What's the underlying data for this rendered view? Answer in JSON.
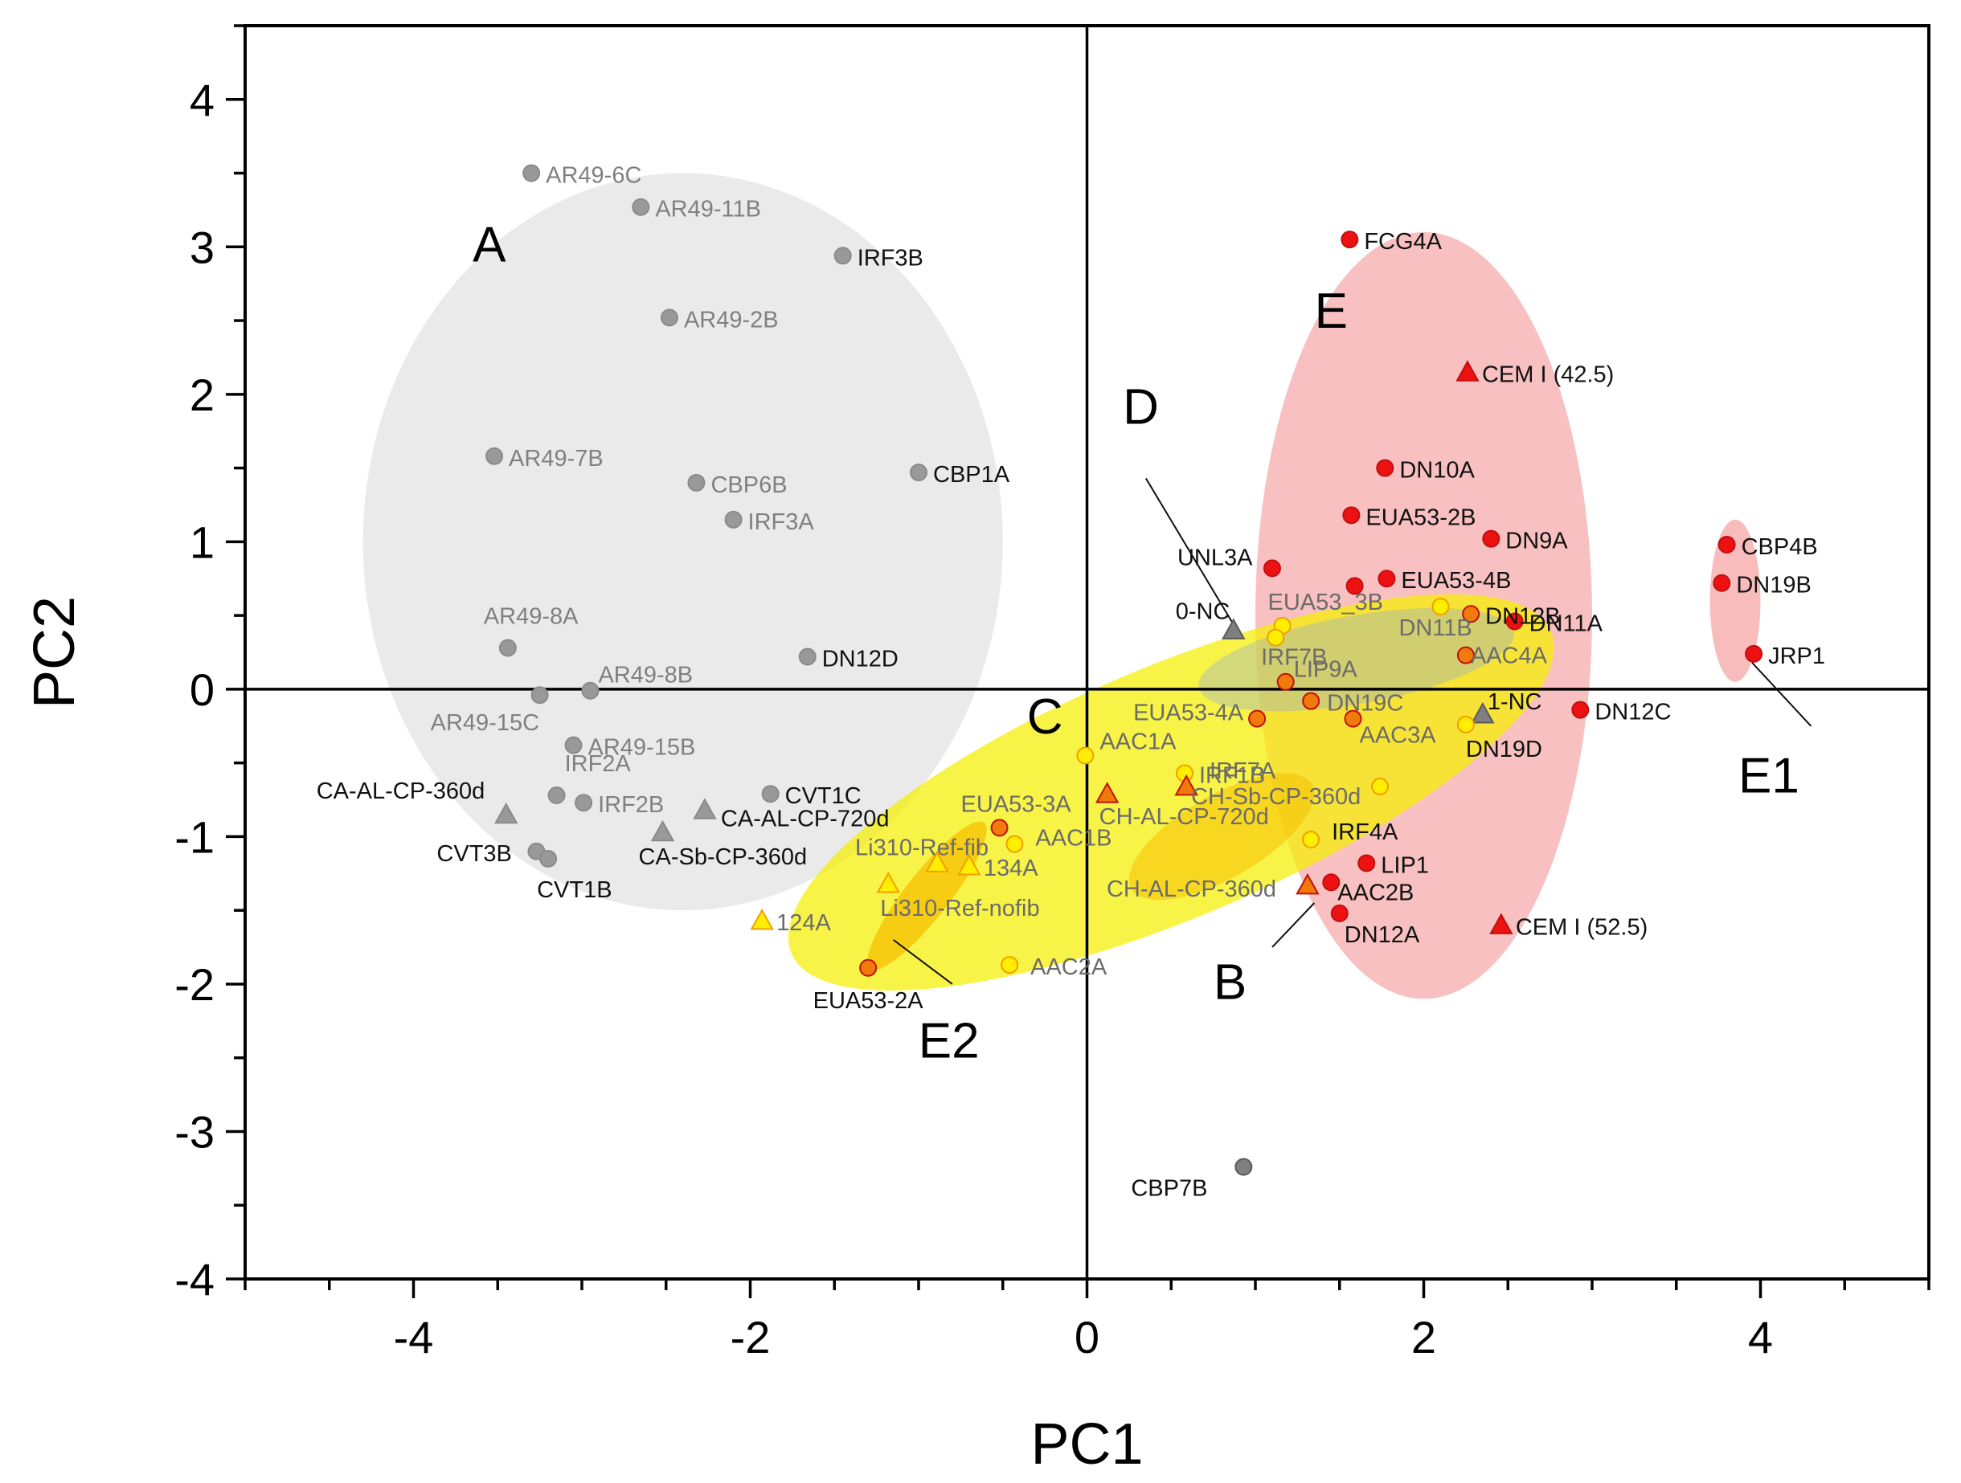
{
  "chart_data": {
    "type": "scatter",
    "title": "",
    "xlabel": "PC1",
    "ylabel": "PC2",
    "xlim": [
      -5,
      5
    ],
    "ylim": [
      -4,
      4.5
    ],
    "xticks": [
      -4,
      -2,
      0,
      2,
      4
    ],
    "yticks": [
      -4,
      -3,
      -2,
      -1,
      0,
      1,
      2,
      3,
      4
    ],
    "xtick_labels": [
      "-4",
      "-2",
      "0",
      "2",
      "4"
    ],
    "ytick_labels": [
      "-4",
      "-3",
      "-2",
      "-1",
      "0",
      "1",
      "2",
      "3",
      "4"
    ],
    "grid": false,
    "colors": {
      "gray": "#999999",
      "darkgray": "#7f7f7f",
      "red": "#ee1111",
      "orange": "#f07a0a",
      "yellow": "#ffee00",
      "ellipse_gray": "#e6e6e6",
      "ellipse_red": "#f7b5b5",
      "ellipse_yellow": "#f5f000",
      "ellipse_orange": "#f5c000",
      "ellipse_blue": "#9cb0c8"
    },
    "groups": [
      {
        "name": "A",
        "cx": -2.4,
        "cy": 1.0,
        "rx": 1.9,
        "ry": 2.5,
        "angle": 0,
        "color": "ellipse_gray",
        "opacity": 0.85
      },
      {
        "name": "E",
        "cx": 2.0,
        "cy": 0.5,
        "rx": 1.0,
        "ry": 2.6,
        "angle": 0,
        "color": "ellipse_red",
        "opacity": 0.85
      },
      {
        "name": "E1",
        "cx": 3.85,
        "cy": 0.6,
        "rx": 0.15,
        "ry": 0.55,
        "angle": 0,
        "color": "ellipse_red",
        "opacity": 0.9
      },
      {
        "name": "C",
        "cx": 0.5,
        "cy": -0.7,
        "rx": 2.45,
        "ry": 0.85,
        "angle": 23,
        "color": "ellipse_yellow",
        "opacity": 0.72
      },
      {
        "name": "B",
        "cx": 0.8,
        "cy": -1.0,
        "rx": 0.62,
        "ry": 0.28,
        "angle": 30,
        "color": "ellipse_orange",
        "opacity": 0.55
      },
      {
        "name": "E2",
        "cx": -0.95,
        "cy": -1.4,
        "rx": 0.55,
        "ry": 0.15,
        "angle": 52,
        "color": "ellipse_orange",
        "opacity": 0.75
      },
      {
        "name": "D",
        "cx": 1.6,
        "cy": 0.2,
        "rx": 0.95,
        "ry": 0.3,
        "angle": 10,
        "color": "ellipse_blue",
        "opacity": 0.4
      }
    ],
    "group_labels": [
      {
        "text": "A",
        "x": -3.55,
        "y": 2.9
      },
      {
        "text": "E",
        "x": 1.45,
        "y": 2.45
      },
      {
        "text": "D",
        "x": 0.32,
        "y": 1.8
      },
      {
        "text": "C",
        "x": -0.25,
        "y": -0.3
      },
      {
        "text": "E1",
        "x": 4.05,
        "y": -0.7
      },
      {
        "text": "E2",
        "x": -0.82,
        "y": -2.5
      },
      {
        "text": "B",
        "x": 0.85,
        "y": -2.1
      }
    ],
    "leaders": [
      {
        "x1": 0.35,
        "y1": 1.43,
        "x2": 0.88,
        "y2": 0.42
      },
      {
        "x1": 3.95,
        "y1": 0.18,
        "x2": 4.3,
        "y2": -0.25
      },
      {
        "x1": -1.15,
        "y1": -1.7,
        "x2": -0.8,
        "y2": -2.0
      },
      {
        "x1": 1.1,
        "y1": -1.75,
        "x2": 1.35,
        "y2": -1.45
      }
    ],
    "points": [
      {
        "label": "AR49-6C",
        "x": -3.3,
        "y": 3.5,
        "shape": "circle",
        "color": "gray",
        "text_color": "#808080"
      },
      {
        "label": "AR49-11B",
        "x": -2.65,
        "y": 3.27,
        "shape": "circle",
        "color": "gray",
        "text_color": "#808080"
      },
      {
        "label": "IRF3B",
        "x": -1.45,
        "y": 2.94,
        "shape": "circle",
        "color": "gray",
        "text_color": "#111111"
      },
      {
        "label": "AR49-2B",
        "x": -2.48,
        "y": 2.52,
        "shape": "circle",
        "color": "gray",
        "text_color": "#808080"
      },
      {
        "label": "AR49-7B",
        "x": -3.52,
        "y": 1.58,
        "shape": "circle",
        "color": "gray",
        "text_color": "#808080"
      },
      {
        "label": "CBP6B",
        "x": -2.32,
        "y": 1.4,
        "shape": "circle",
        "color": "gray",
        "text_color": "#808080"
      },
      {
        "label": "CBP1A",
        "x": -1.0,
        "y": 1.47,
        "shape": "circle",
        "color": "gray",
        "text_color": "#111111"
      },
      {
        "label": "IRF3A",
        "x": -2.1,
        "y": 1.15,
        "shape": "circle",
        "color": "gray",
        "text_color": "#808080"
      },
      {
        "label": "AR49-8A",
        "x": -3.44,
        "y": 0.28,
        "shape": "circle",
        "color": "gray",
        "text_color": "#808080"
      },
      {
        "label": "DN12D",
        "x": -1.66,
        "y": 0.22,
        "shape": "circle",
        "color": "gray",
        "text_color": "#111111"
      },
      {
        "label": "AR49-8B",
        "x": -2.95,
        "y": -0.01,
        "shape": "circle",
        "color": "gray",
        "text_color": "#808080"
      },
      {
        "label": "AR49-15C",
        "x": -3.25,
        "y": -0.04,
        "shape": "circle",
        "color": "gray",
        "text_color": "#808080"
      },
      {
        "label": "AR49-15B",
        "x": -3.05,
        "y": -0.38,
        "shape": "circle",
        "color": "gray",
        "text_color": "#808080"
      },
      {
        "label": "IRF2A",
        "x": -3.15,
        "y": -0.72,
        "shape": "circle",
        "color": "gray",
        "text_color": "#808080"
      },
      {
        "label": "IRF2B",
        "x": -2.99,
        "y": -0.77,
        "shape": "circle",
        "color": "gray",
        "text_color": "#808080"
      },
      {
        "label": "CVT1C",
        "x": -1.88,
        "y": -0.71,
        "shape": "circle",
        "color": "gray",
        "text_color": "#111111"
      },
      {
        "label": "CA-AL-CP-360d",
        "x": -3.45,
        "y": -0.85,
        "shape": "triangle",
        "color": "gray",
        "text_color": "#111111"
      },
      {
        "label": "CA-AL-CP-720d",
        "x": -2.27,
        "y": -0.82,
        "shape": "triangle",
        "color": "gray",
        "text_color": "#111111"
      },
      {
        "label": "CA-Sb-CP-360d",
        "x": -2.52,
        "y": -0.97,
        "shape": "triangle",
        "color": "gray",
        "text_color": "#111111"
      },
      {
        "label": "CVT3B",
        "x": -3.27,
        "y": -1.1,
        "shape": "circle",
        "color": "gray",
        "text_color": "#111111"
      },
      {
        "label": "CVT1B",
        "x": -3.2,
        "y": -1.15,
        "shape": "circle",
        "color": "gray",
        "text_color": "#111111"
      },
      {
        "label": "CBP7B",
        "x": 0.93,
        "y": -3.24,
        "shape": "circle",
        "color": "darkgray",
        "text_color": "#111111"
      },
      {
        "label": "FCG4A",
        "x": 1.56,
        "y": 3.05,
        "shape": "circle",
        "color": "red",
        "text_color": "#111111"
      },
      {
        "label": "CEM I (42.5)",
        "x": 2.26,
        "y": 2.15,
        "shape": "triangle",
        "color": "red",
        "text_color": "#111111"
      },
      {
        "label": "DN10A",
        "x": 1.77,
        "y": 1.5,
        "shape": "circle",
        "color": "red",
        "text_color": "#111111"
      },
      {
        "label": "EUA53-2B",
        "x": 1.57,
        "y": 1.18,
        "shape": "circle",
        "color": "red",
        "text_color": "#111111"
      },
      {
        "label": "DN9A",
        "x": 2.4,
        "y": 1.02,
        "shape": "circle",
        "color": "red",
        "text_color": "#111111"
      },
      {
        "label": "UNL3A",
        "x": 1.1,
        "y": 0.82,
        "shape": "circle",
        "color": "red",
        "text_color": "#111111"
      },
      {
        "label": "EUA53-4B",
        "x": 1.78,
        "y": 0.75,
        "shape": "circle",
        "color": "red",
        "text_color": "#111111"
      },
      {
        "label": "",
        "x": 1.59,
        "y": 0.7,
        "shape": "circle",
        "color": "red",
        "text_color": "#111111"
      },
      {
        "label": "DN12B",
        "x": 2.28,
        "y": 0.51,
        "shape": "circle",
        "color": "orange",
        "text_color": "#111111"
      },
      {
        "label": "DN11A",
        "x": 2.54,
        "y": 0.46,
        "shape": "circle",
        "color": "red",
        "text_color": "#111111"
      },
      {
        "label": "CBP4B",
        "x": 3.8,
        "y": 0.98,
        "shape": "circle",
        "color": "red",
        "text_color": "#111111"
      },
      {
        "label": "DN19B",
        "x": 3.77,
        "y": 0.72,
        "shape": "circle",
        "color": "red",
        "text_color": "#111111"
      },
      {
        "label": "JRP1",
        "x": 3.96,
        "y": 0.24,
        "shape": "circle",
        "color": "red",
        "text_color": "#111111"
      },
      {
        "label": "DN12C",
        "x": 2.93,
        "y": -0.14,
        "shape": "circle",
        "color": "red",
        "text_color": "#111111"
      },
      {
        "label": "0-NC",
        "x": 0.87,
        "y": 0.4,
        "shape": "triangle",
        "color": "darkgray",
        "text_color": "#111111"
      },
      {
        "label": "EUA53_3B",
        "x": 1.16,
        "y": 0.43,
        "shape": "circle",
        "color": "yellow",
        "text_color": "#6b6b6b"
      },
      {
        "label": "DN11B",
        "x": 2.1,
        "y": 0.56,
        "shape": "circle",
        "color": "yellow",
        "text_color": "#6b6b6b"
      },
      {
        "label": "IRF7B",
        "x": 1.12,
        "y": 0.35,
        "shape": "circle",
        "color": "yellow",
        "text_color": "#6b6b6b"
      },
      {
        "label": "AAC4A",
        "x": 2.25,
        "y": 0.23,
        "shape": "circle",
        "color": "orange",
        "text_color": "#6b6b6b"
      },
      {
        "label": "LIP9A",
        "x": 1.18,
        "y": 0.05,
        "shape": "circle",
        "color": "orange",
        "text_color": "#6b6b6b"
      },
      {
        "label": "EUA53-4A",
        "x": 1.01,
        "y": -0.2,
        "shape": "circle",
        "color": "orange",
        "text_color": "#6b6b6b"
      },
      {
        "label": "DN19C",
        "x": 1.33,
        "y": -0.08,
        "shape": "circle",
        "color": "orange",
        "text_color": "#6b6b6b"
      },
      {
        "label": "AAC3A",
        "x": 1.58,
        "y": -0.2,
        "shape": "circle",
        "color": "orange",
        "text_color": "#6b6b6b"
      },
      {
        "label": "1-NC",
        "x": 2.35,
        "y": -0.17,
        "shape": "triangle",
        "color": "darkgray",
        "text_color": "#111111"
      },
      {
        "label": "DN19D",
        "x": 2.25,
        "y": -0.24,
        "shape": "circle",
        "color": "yellow",
        "text_color": "#111111"
      },
      {
        "label": "AAC1A",
        "x": -0.01,
        "y": -0.45,
        "shape": "circle",
        "color": "yellow",
        "text_color": "#6b6b6b"
      },
      {
        "label": "IRF1B",
        "x": 0.58,
        "y": -0.57,
        "shape": "circle",
        "color": "yellow",
        "text_color": "#6b6b6b"
      },
      {
        "label": "IRF7A",
        "x": 1.74,
        "y": -0.66,
        "shape": "circle",
        "color": "yellow",
        "text_color": "#6b6b6b"
      },
      {
        "label": "CH-Sb-CP-360d",
        "x": 0.59,
        "y": -0.66,
        "shape": "triangle",
        "color": "orange",
        "text_color": "#6b6b6b"
      },
      {
        "label": "CH-AL-CP-720d",
        "x": 0.12,
        "y": -0.71,
        "shape": "triangle",
        "color": "orange",
        "text_color": "#6b6b6b"
      },
      {
        "label": "EUA53-3A",
        "x": -0.52,
        "y": -0.94,
        "shape": "circle",
        "color": "orange",
        "text_color": "#6b6b6b"
      },
      {
        "label": "AAC1B",
        "x": -0.43,
        "y": -1.05,
        "shape": "circle",
        "color": "yellow",
        "text_color": "#6b6b6b"
      },
      {
        "label": "IRF4A",
        "x": 1.33,
        "y": -1.02,
        "shape": "circle",
        "color": "yellow",
        "text_color": "#111111"
      },
      {
        "label": "LIP1",
        "x": 1.66,
        "y": -1.18,
        "shape": "circle",
        "color": "red",
        "text_color": "#111111"
      },
      {
        "label": "CH-AL-CP-360d",
        "x": 1.31,
        "y": -1.33,
        "shape": "triangle",
        "color": "orange",
        "text_color": "#6b6b6b"
      },
      {
        "label": "AAC2B",
        "x": 1.45,
        "y": -1.31,
        "shape": "circle",
        "color": "red",
        "text_color": "#111111"
      },
      {
        "label": "DN12A",
        "x": 1.5,
        "y": -1.52,
        "shape": "circle",
        "color": "red",
        "text_color": "#111111"
      },
      {
        "label": "CEM I (52.5)",
        "x": 2.46,
        "y": -1.6,
        "shape": "triangle",
        "color": "red",
        "text_color": "#111111"
      },
      {
        "label": "Li310-Ref-fib",
        "x": -0.89,
        "y": -1.18,
        "shape": "triangle",
        "color": "yellow",
        "text_color": "#6b6b6b"
      },
      {
        "label": "134A",
        "x": -0.7,
        "y": -1.2,
        "shape": "triangle",
        "color": "yellow",
        "text_color": "#6b6b6b"
      },
      {
        "label": "Li310-Ref-nofib",
        "x": -1.18,
        "y": -1.32,
        "shape": "triangle",
        "color": "yellow",
        "text_color": "#6b6b6b"
      },
      {
        "label": "124A",
        "x": -1.93,
        "y": -1.57,
        "shape": "triangle",
        "color": "yellow",
        "text_color": "#6b6b6b"
      },
      {
        "label": "AAC2A",
        "x": -0.46,
        "y": -1.87,
        "shape": "circle",
        "color": "yellow",
        "text_color": "#6b6b6b"
      },
      {
        "label": "EUA53-2A",
        "x": -1.3,
        "y": -1.89,
        "shape": "circle",
        "color": "orange",
        "text_color": "#111111"
      }
    ]
  }
}
